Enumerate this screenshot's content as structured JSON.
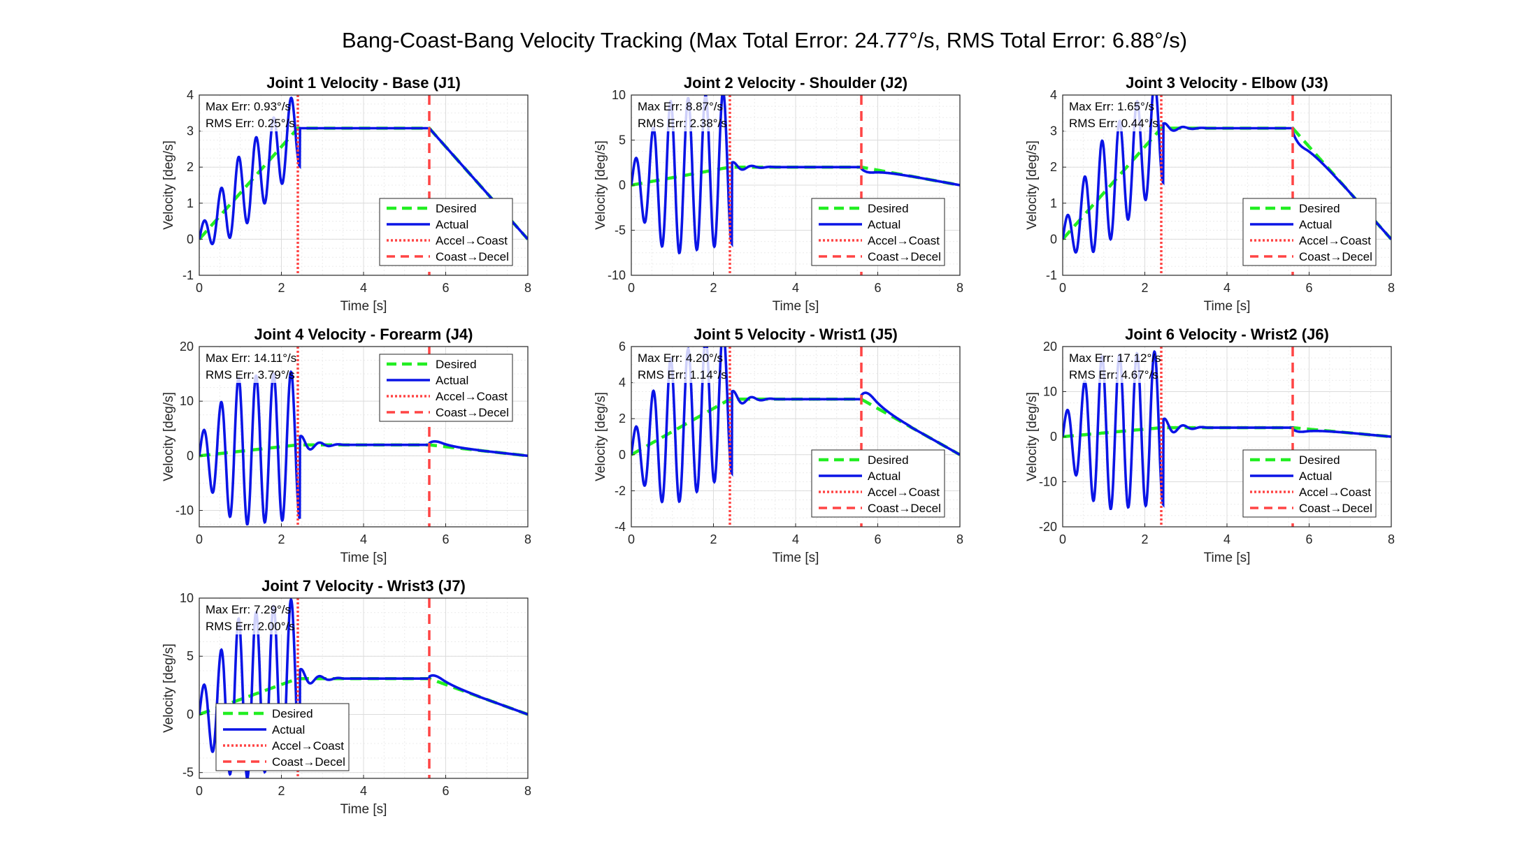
{
  "figure": {
    "title": "Bang-Coast-Bang Velocity Tracking (Max Total Error: 24.77°/s, RMS Total Error: 6.88°/s)"
  },
  "legend_labels": [
    "Desired",
    "Actual",
    "Accel→Coast",
    "Coast→Decel"
  ],
  "colors": {
    "desired": "#22ee22",
    "actual": "#0a14e6",
    "phase": "#ff4444",
    "grid": "#e6e6e6"
  },
  "chart_data": [
    {
      "type": "line",
      "title": "Joint 1 Velocity - Base (J1)",
      "xlabel": "Time [s]",
      "ylabel": "Velocity [deg/s]",
      "xlim": [
        0,
        8
      ],
      "ylim": [
        -1,
        4
      ],
      "xticks": [
        0,
        2,
        4,
        6,
        8
      ],
      "yticks": [
        -1,
        0,
        1,
        2,
        3,
        4
      ],
      "grid": true,
      "legend_position": "bottom-right",
      "max_err": "Max Err: 0.93°/s",
      "rms_err": "RMS Err: 0.25°/s",
      "vmax": 3.08,
      "osc_amp": 1.05,
      "decay_amp": 0,
      "jerk": 0,
      "phase_lines": {
        "accel_to_coast": 2.4,
        "coast_to_decel": 5.6
      }
    },
    {
      "type": "line",
      "title": "Joint 2 Velocity - Shoulder (J2)",
      "xlabel": "Time [s]",
      "ylabel": "Velocity [deg/s]",
      "xlim": [
        0,
        8
      ],
      "ylim": [
        -10,
        10
      ],
      "xticks": [
        0,
        2,
        4,
        6,
        8
      ],
      "yticks": [
        -10,
        -5,
        0,
        5,
        10
      ],
      "grid": true,
      "legend_position": "bottom-right",
      "max_err": "Max Err: 8.87°/s",
      "rms_err": "RMS Err: 2.38°/s",
      "vmax": 2.0,
      "osc_amp": 8.5,
      "decay_amp": 0.6,
      "jerk": -0.9,
      "phase_lines": {
        "accel_to_coast": 2.4,
        "coast_to_decel": 5.6
      }
    },
    {
      "type": "line",
      "title": "Joint 3 Velocity - Elbow (J3)",
      "xlabel": "Time [s]",
      "ylabel": "Velocity [deg/s]",
      "xlim": [
        0,
        8
      ],
      "ylim": [
        -1,
        4
      ],
      "xticks": [
        0,
        2,
        4,
        6,
        8
      ],
      "yticks": [
        -1,
        0,
        1,
        2,
        3,
        4
      ],
      "grid": true,
      "legend_position": "bottom-right",
      "max_err": "Max Err: 1.65°/s",
      "rms_err": "RMS Err: 0.44°/s",
      "vmax": 3.08,
      "osc_amp": 1.5,
      "decay_amp": 0.15,
      "jerk": -0.5,
      "phase_lines": {
        "accel_to_coast": 2.4,
        "coast_to_decel": 5.6
      }
    },
    {
      "type": "line",
      "title": "Joint 4 Velocity - Forearm (J4)",
      "xlabel": "Time [s]",
      "ylabel": "Velocity [deg/s]",
      "xlim": [
        0,
        8
      ],
      "ylim": [
        -13,
        20
      ],
      "xticks": [
        0,
        2,
        4,
        6,
        8
      ],
      "yticks": [
        -10,
        0,
        10,
        20
      ],
      "grid": true,
      "legend_position": "top-right",
      "max_err": "Max Err: 14.11°/s",
      "rms_err": "RMS Err: 3.79°/s",
      "vmax": 2.0,
      "osc_amp": 13.5,
      "decay_amp": 1.8,
      "jerk": 1.6,
      "phase_lines": {
        "accel_to_coast": 2.4,
        "coast_to_decel": 5.6
      }
    },
    {
      "type": "line",
      "title": "Joint 5 Velocity - Wrist1 (J5)",
      "xlabel": "Time [s]",
      "ylabel": "Velocity [deg/s]",
      "xlim": [
        0,
        8
      ],
      "ylim": [
        -4,
        6
      ],
      "xticks": [
        0,
        2,
        4,
        6,
        8
      ],
      "yticks": [
        -4,
        -2,
        0,
        2,
        4,
        6
      ],
      "grid": true,
      "legend_position": "bottom-right",
      "max_err": "Max Err: 4.20°/s",
      "rms_err": "RMS Err: 1.14°/s",
      "vmax": 3.08,
      "osc_amp": 4.1,
      "decay_amp": 0.5,
      "jerk": 1.1,
      "phase_lines": {
        "accel_to_coast": 2.4,
        "coast_to_decel": 5.6
      }
    },
    {
      "type": "line",
      "title": "Joint 6 Velocity - Wrist2 (J6)",
      "xlabel": "Time [s]",
      "ylabel": "Velocity [deg/s]",
      "xlim": [
        0,
        8
      ],
      "ylim": [
        -20,
        20
      ],
      "xticks": [
        0,
        2,
        4,
        6,
        8
      ],
      "yticks": [
        -20,
        -10,
        0,
        10,
        20
      ],
      "grid": true,
      "legend_position": "bottom-right",
      "max_err": "Max Err: 17.12°/s",
      "rms_err": "RMS Err: 4.67°/s",
      "vmax": 2.0,
      "osc_amp": 17.0,
      "decay_amp": 2.2,
      "jerk": -1.6,
      "phase_lines": {
        "accel_to_coast": 2.4,
        "coast_to_decel": 5.6
      }
    },
    {
      "type": "line",
      "title": "Joint 7 Velocity - Wrist3 (J7)",
      "xlabel": "Time [s]",
      "ylabel": "Velocity [deg/s]",
      "xlim": [
        0,
        8
      ],
      "ylim": [
        -5.5,
        10
      ],
      "xticks": [
        0,
        2,
        4,
        6,
        8
      ],
      "yticks": [
        -5,
        0,
        5,
        10
      ],
      "grid": true,
      "legend_position": "bottom-left",
      "max_err": "Max Err: 7.29°/s",
      "rms_err": "RMS Err: 2.00°/s",
      "vmax": 3.08,
      "osc_amp": 7.0,
      "decay_amp": 0.9,
      "jerk": 0.9,
      "phase_lines": {
        "accel_to_coast": 2.4,
        "coast_to_decel": 5.6
      }
    }
  ]
}
